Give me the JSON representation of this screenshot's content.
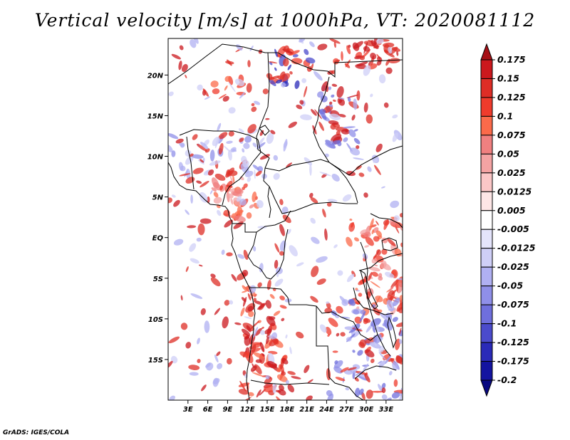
{
  "title": "Vertical velocity [m/s] at 1000hPa, VT: 2020081112",
  "credit": "GrADS: IGES/COLA",
  "map": {
    "lat_ticks": [
      "20N",
      "15N",
      "10N",
      "5N",
      "EQ",
      "5S",
      "10S",
      "15S"
    ],
    "lat_values": [
      20,
      15,
      10,
      5,
      0,
      -5,
      -10,
      -15
    ],
    "lon_ticks": [
      "3E",
      "6E",
      "9E",
      "12E",
      "15E",
      "18E",
      "21E",
      "24E",
      "27E",
      "30E",
      "33E"
    ],
    "lon_values": [
      3,
      6,
      9,
      12,
      15,
      18,
      21,
      24,
      27,
      30,
      33
    ],
    "lat_range": [
      -20,
      24.5
    ],
    "lon_range": [
      0,
      35.5
    ]
  },
  "colorbar": {
    "labels": [
      "0.175",
      "0.15",
      "0.125",
      "0.1",
      "0.075",
      "0.05",
      "0.025",
      "0.0125",
      "0.005",
      "-0.005",
      "-0.0125",
      "-0.025",
      "-0.05",
      "-0.075",
      "-0.1",
      "-0.125",
      "-0.175",
      "-0.2"
    ],
    "colors": [
      "#a50f15",
      "#cb181d",
      "#de2d26",
      "#ef3b2c",
      "#fb6a4a",
      "#f08080",
      "#f4a3a3",
      "#fbc7c7",
      "#fde6e6",
      "#ffffff",
      "#e4e4fb",
      "#cfcff7",
      "#b0b0f2",
      "#8f8fe8",
      "#6f6fdc",
      "#4b4bcc",
      "#2a2ab8",
      "#1414a0",
      "#080880"
    ]
  }
}
